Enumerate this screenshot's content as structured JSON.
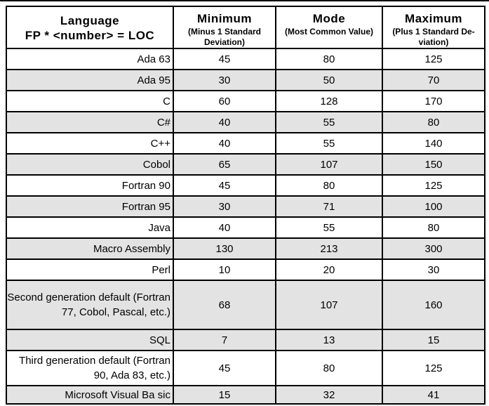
{
  "colors": {
    "row_shade": "#e3e3e3",
    "border": "#000000",
    "top_rule": "#000000"
  },
  "table": {
    "header": {
      "language_title": "Language",
      "language_subtitle": "FP * <number> = LOC",
      "columns": [
        {
          "title": "Minimum",
          "subtitle": "(Minus 1 Standard Deviation)"
        },
        {
          "title": "Mode",
          "subtitle": "(Most Common Value)"
        },
        {
          "title": "Maximum",
          "subtitle": "(Plus 1 Standard De-viation)"
        }
      ]
    },
    "rows": [
      {
        "language": "Ada 63",
        "minimum": "45",
        "mode": "80",
        "maximum": "125",
        "shaded": false
      },
      {
        "language": "Ada 95",
        "minimum": "30",
        "mode": "50",
        "maximum": "70",
        "shaded": true
      },
      {
        "language": "C",
        "minimum": "60",
        "mode": "128",
        "maximum": "170",
        "shaded": false
      },
      {
        "language": "C#",
        "minimum": "40",
        "mode": "55",
        "maximum": "80",
        "shaded": true
      },
      {
        "language": "C++",
        "minimum": "40",
        "mode": "55",
        "maximum": "140",
        "shaded": false
      },
      {
        "language": "Cobol",
        "minimum": "65",
        "mode": "107",
        "maximum": "150",
        "shaded": true
      },
      {
        "language": "Fortran 90",
        "minimum": "45",
        "mode": "80",
        "maximum": "125",
        "shaded": false
      },
      {
        "language": "Fortran 95",
        "minimum": "30",
        "mode": "71",
        "maximum": "100",
        "shaded": true
      },
      {
        "language": "Java",
        "minimum": "40",
        "mode": "55",
        "maximum": "80",
        "shaded": false
      },
      {
        "language": "Macro Assembly",
        "minimum": "130",
        "mode": "213",
        "maximum": "300",
        "shaded": true
      },
      {
        "language": "Perl",
        "minimum": "10",
        "mode": "20",
        "maximum": "30",
        "shaded": false
      },
      {
        "language": "Second generation default (Fortran 77, Cobol, Pascal, etc.)",
        "minimum": "68",
        "mode": "107",
        "maximum": "160",
        "shaded": true
      },
      {
        "language": "SQL",
        "minimum": "7",
        "mode": "13",
        "maximum": "15",
        "shaded": true
      },
      {
        "language": "Third generation default (Fortran 90, Ada 83, etc.)",
        "minimum": "45",
        "mode": "80",
        "maximum": "125",
        "shaded": false
      },
      {
        "language": "Microsoft Visual Ba sic",
        "minimum": "15",
        "mode": "32",
        "maximum": "41",
        "shaded": true
      }
    ]
  }
}
